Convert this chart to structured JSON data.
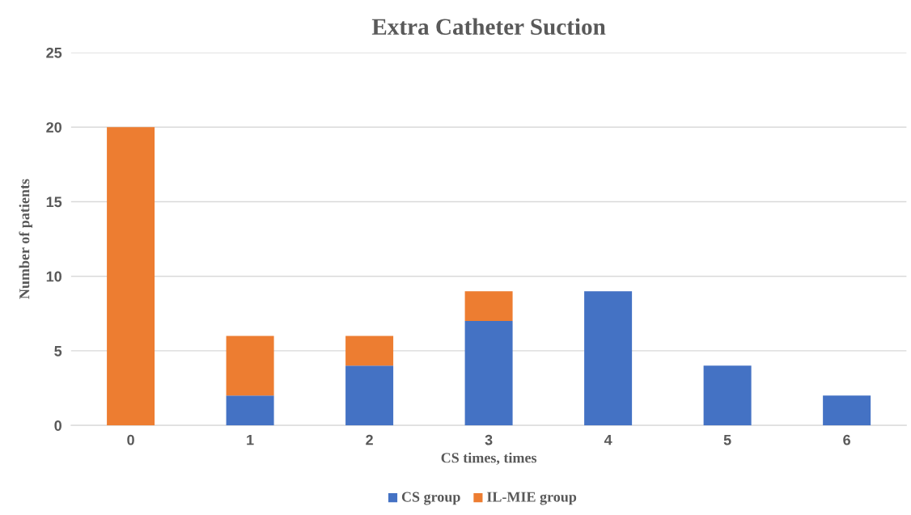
{
  "chart_data": {
    "type": "bar",
    "title": "Extra Catheter Suction",
    "xlabel": "CS times, times",
    "ylabel": "Number of patients",
    "categories": [
      "0",
      "1",
      "2",
      "3",
      "4",
      "5",
      "6"
    ],
    "series": [
      {
        "name": "CS group",
        "color": "#4472c4",
        "values": [
          0,
          2,
          4,
          7,
          9,
          4,
          2
        ]
      },
      {
        "name": "IL-MIE group",
        "color": "#ed7d31",
        "values": [
          20,
          4,
          2,
          2,
          0,
          0,
          0
        ]
      }
    ],
    "stacked": true,
    "ylim": [
      0,
      25
    ],
    "yticks": [
      0,
      5,
      10,
      15,
      20,
      25
    ],
    "grid": "y",
    "legend": "bottom"
  }
}
